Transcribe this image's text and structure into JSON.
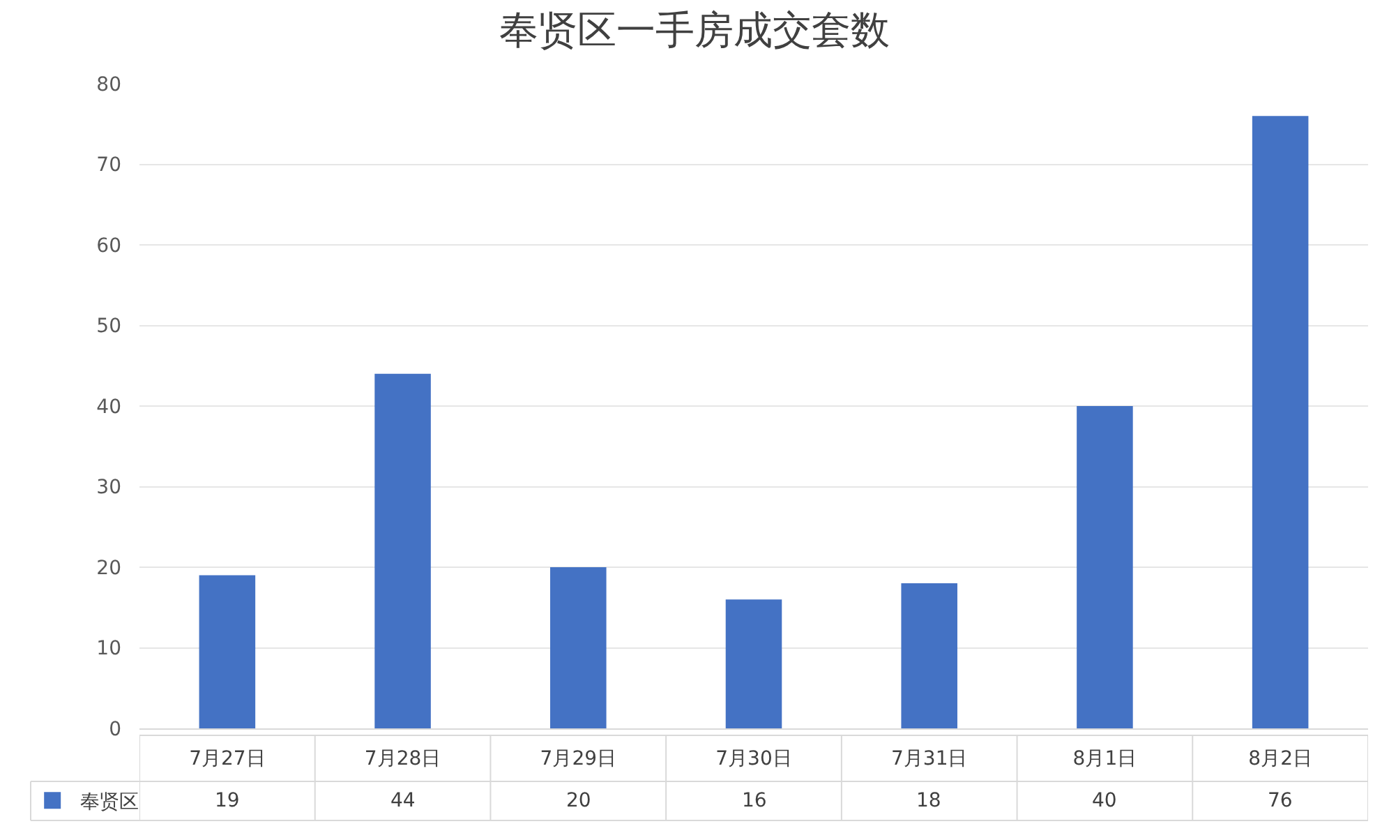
{
  "chart_data": {
    "type": "bar",
    "title": "奉贤区一手房成交套数",
    "categories": [
      "7月27日",
      "7月28日",
      "7月29日",
      "7月30日",
      "7月31日",
      "8月1日",
      "8月2日"
    ],
    "series": [
      {
        "name": "奉贤区",
        "color": "#4472c4",
        "values": [
          19,
          44,
          20,
          16,
          18,
          40,
          76
        ]
      }
    ],
    "ylim": [
      0,
      80
    ],
    "yticks": [
      0,
      10,
      20,
      30,
      40,
      50,
      60,
      70,
      80
    ],
    "grid": "y",
    "legend": "bottom left",
    "data_labels": true
  }
}
